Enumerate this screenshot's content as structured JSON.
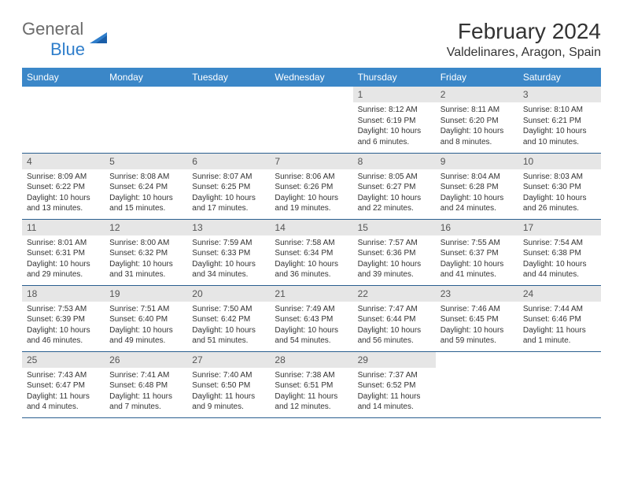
{
  "logo": {
    "line1": "General",
    "line2": "Blue"
  },
  "title": "February 2024",
  "location": "Valdelinares, Aragon, Spain",
  "colors": {
    "header_bg": "#3b87c8",
    "header_text": "#ffffff",
    "daynum_bg": "#e6e6e6",
    "border": "#2a5f8f",
    "logo_gray": "#6b6b6b",
    "logo_blue": "#2f7ecb"
  },
  "weekdays": [
    "Sunday",
    "Monday",
    "Tuesday",
    "Wednesday",
    "Thursday",
    "Friday",
    "Saturday"
  ],
  "leading_blanks": 4,
  "days": [
    {
      "n": "1",
      "sunrise": "8:12 AM",
      "sunset": "6:19 PM",
      "daylight": "10 hours and 6 minutes."
    },
    {
      "n": "2",
      "sunrise": "8:11 AM",
      "sunset": "6:20 PM",
      "daylight": "10 hours and 8 minutes."
    },
    {
      "n": "3",
      "sunrise": "8:10 AM",
      "sunset": "6:21 PM",
      "daylight": "10 hours and 10 minutes."
    },
    {
      "n": "4",
      "sunrise": "8:09 AM",
      "sunset": "6:22 PM",
      "daylight": "10 hours and 13 minutes."
    },
    {
      "n": "5",
      "sunrise": "8:08 AM",
      "sunset": "6:24 PM",
      "daylight": "10 hours and 15 minutes."
    },
    {
      "n": "6",
      "sunrise": "8:07 AM",
      "sunset": "6:25 PM",
      "daylight": "10 hours and 17 minutes."
    },
    {
      "n": "7",
      "sunrise": "8:06 AM",
      "sunset": "6:26 PM",
      "daylight": "10 hours and 19 minutes."
    },
    {
      "n": "8",
      "sunrise": "8:05 AM",
      "sunset": "6:27 PM",
      "daylight": "10 hours and 22 minutes."
    },
    {
      "n": "9",
      "sunrise": "8:04 AM",
      "sunset": "6:28 PM",
      "daylight": "10 hours and 24 minutes."
    },
    {
      "n": "10",
      "sunrise": "8:03 AM",
      "sunset": "6:30 PM",
      "daylight": "10 hours and 26 minutes."
    },
    {
      "n": "11",
      "sunrise": "8:01 AM",
      "sunset": "6:31 PM",
      "daylight": "10 hours and 29 minutes."
    },
    {
      "n": "12",
      "sunrise": "8:00 AM",
      "sunset": "6:32 PM",
      "daylight": "10 hours and 31 minutes."
    },
    {
      "n": "13",
      "sunrise": "7:59 AM",
      "sunset": "6:33 PM",
      "daylight": "10 hours and 34 minutes."
    },
    {
      "n": "14",
      "sunrise": "7:58 AM",
      "sunset": "6:34 PM",
      "daylight": "10 hours and 36 minutes."
    },
    {
      "n": "15",
      "sunrise": "7:57 AM",
      "sunset": "6:36 PM",
      "daylight": "10 hours and 39 minutes."
    },
    {
      "n": "16",
      "sunrise": "7:55 AM",
      "sunset": "6:37 PM",
      "daylight": "10 hours and 41 minutes."
    },
    {
      "n": "17",
      "sunrise": "7:54 AM",
      "sunset": "6:38 PM",
      "daylight": "10 hours and 44 minutes."
    },
    {
      "n": "18",
      "sunrise": "7:53 AM",
      "sunset": "6:39 PM",
      "daylight": "10 hours and 46 minutes."
    },
    {
      "n": "19",
      "sunrise": "7:51 AM",
      "sunset": "6:40 PM",
      "daylight": "10 hours and 49 minutes."
    },
    {
      "n": "20",
      "sunrise": "7:50 AM",
      "sunset": "6:42 PM",
      "daylight": "10 hours and 51 minutes."
    },
    {
      "n": "21",
      "sunrise": "7:49 AM",
      "sunset": "6:43 PM",
      "daylight": "10 hours and 54 minutes."
    },
    {
      "n": "22",
      "sunrise": "7:47 AM",
      "sunset": "6:44 PM",
      "daylight": "10 hours and 56 minutes."
    },
    {
      "n": "23",
      "sunrise": "7:46 AM",
      "sunset": "6:45 PM",
      "daylight": "10 hours and 59 minutes."
    },
    {
      "n": "24",
      "sunrise": "7:44 AM",
      "sunset": "6:46 PM",
      "daylight": "11 hours and 1 minute."
    },
    {
      "n": "25",
      "sunrise": "7:43 AM",
      "sunset": "6:47 PM",
      "daylight": "11 hours and 4 minutes."
    },
    {
      "n": "26",
      "sunrise": "7:41 AM",
      "sunset": "6:48 PM",
      "daylight": "11 hours and 7 minutes."
    },
    {
      "n": "27",
      "sunrise": "7:40 AM",
      "sunset": "6:50 PM",
      "daylight": "11 hours and 9 minutes."
    },
    {
      "n": "28",
      "sunrise": "7:38 AM",
      "sunset": "6:51 PM",
      "daylight": "11 hours and 12 minutes."
    },
    {
      "n": "29",
      "sunrise": "7:37 AM",
      "sunset": "6:52 PM",
      "daylight": "11 hours and 14 minutes."
    }
  ],
  "labels": {
    "sunrise": "Sunrise:",
    "sunset": "Sunset:",
    "daylight": "Daylight:"
  }
}
